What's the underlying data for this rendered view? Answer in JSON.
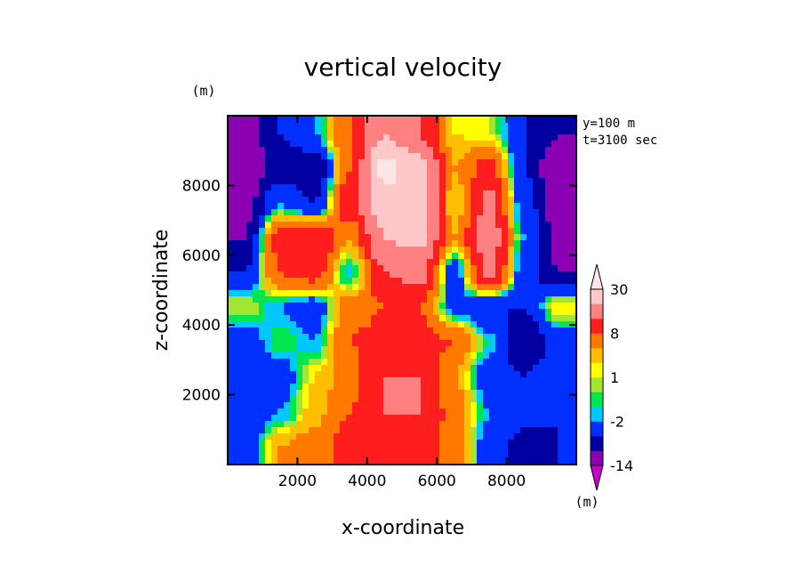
{
  "chart_data": {
    "type": "heatmap",
    "title": "vertical velocity",
    "xlabel": "x-coordinate",
    "ylabel": "z-coordinate",
    "y_unit": "(m)",
    "annotations": [
      "y=100 m",
      "t=3100 sec"
    ],
    "xlim": [
      0,
      10000
    ],
    "ylim": [
      0,
      10000
    ],
    "x_ticks": [
      2000,
      4000,
      6000,
      8000
    ],
    "y_ticks": [
      2000,
      4000,
      6000,
      8000
    ],
    "x_tick_labels": [
      "2000",
      "4000",
      "6000",
      "8000"
    ],
    "y_tick_labels": [
      "2000",
      "4000",
      "6000",
      "8000"
    ],
    "grid": false,
    "colorbar": {
      "unit": "(m)",
      "labels": [
        {
          "text": "30",
          "level": 30
        },
        {
          "text": "8",
          "level": 8
        },
        {
          "text": "1",
          "level": 1
        },
        {
          "text": "-2",
          "level": -2
        },
        {
          "text": "-14",
          "level": -14
        }
      ],
      "levels": [
        -14,
        -10,
        -6,
        -2,
        -1,
        0,
        1,
        2,
        4,
        8,
        14,
        22,
        30
      ],
      "colors": [
        "#c800c8",
        "#8c00b4",
        "#0000a0",
        "#0030ff",
        "#00c8ff",
        "#00e650",
        "#a0e632",
        "#ffff00",
        "#ffbe00",
        "#ff7800",
        "#ff1e1e",
        "#ff8080",
        "#ffc8c8",
        "#ffe6e6"
      ]
    },
    "field": {
      "nx": 10,
      "nz": 10,
      "values": [
        [
          -4,
          4,
          6,
          10,
          12,
          12,
          6,
          -4,
          -8,
          -6
        ],
        [
          -6,
          -2,
          3,
          8,
          14,
          14,
          6,
          -2,
          -4,
          -6
        ],
        [
          -6,
          -4,
          2,
          6,
          14,
          14,
          4,
          -4,
          -6,
          -4
        ],
        [
          -4,
          0,
          -2,
          8,
          10,
          10,
          8,
          -1,
          -10,
          -4
        ],
        [
          1,
          -2,
          -4,
          6,
          8,
          8,
          -3,
          -6,
          -6,
          2
        ],
        [
          -6,
          8,
          10,
          -2,
          14,
          16,
          -4,
          16,
          -4,
          -10
        ],
        [
          -10,
          10,
          14,
          4,
          22,
          24,
          4,
          18,
          -2,
          -12
        ],
        [
          -12,
          -2,
          -6,
          12,
          28,
          26,
          2,
          16,
          -4,
          -12
        ],
        [
          -14,
          -8,
          -10,
          8,
          32,
          26,
          4,
          10,
          -6,
          -14
        ],
        [
          -12,
          -6,
          -2,
          8,
          22,
          14,
          2,
          1,
          -6,
          -10
        ]
      ]
    }
  }
}
